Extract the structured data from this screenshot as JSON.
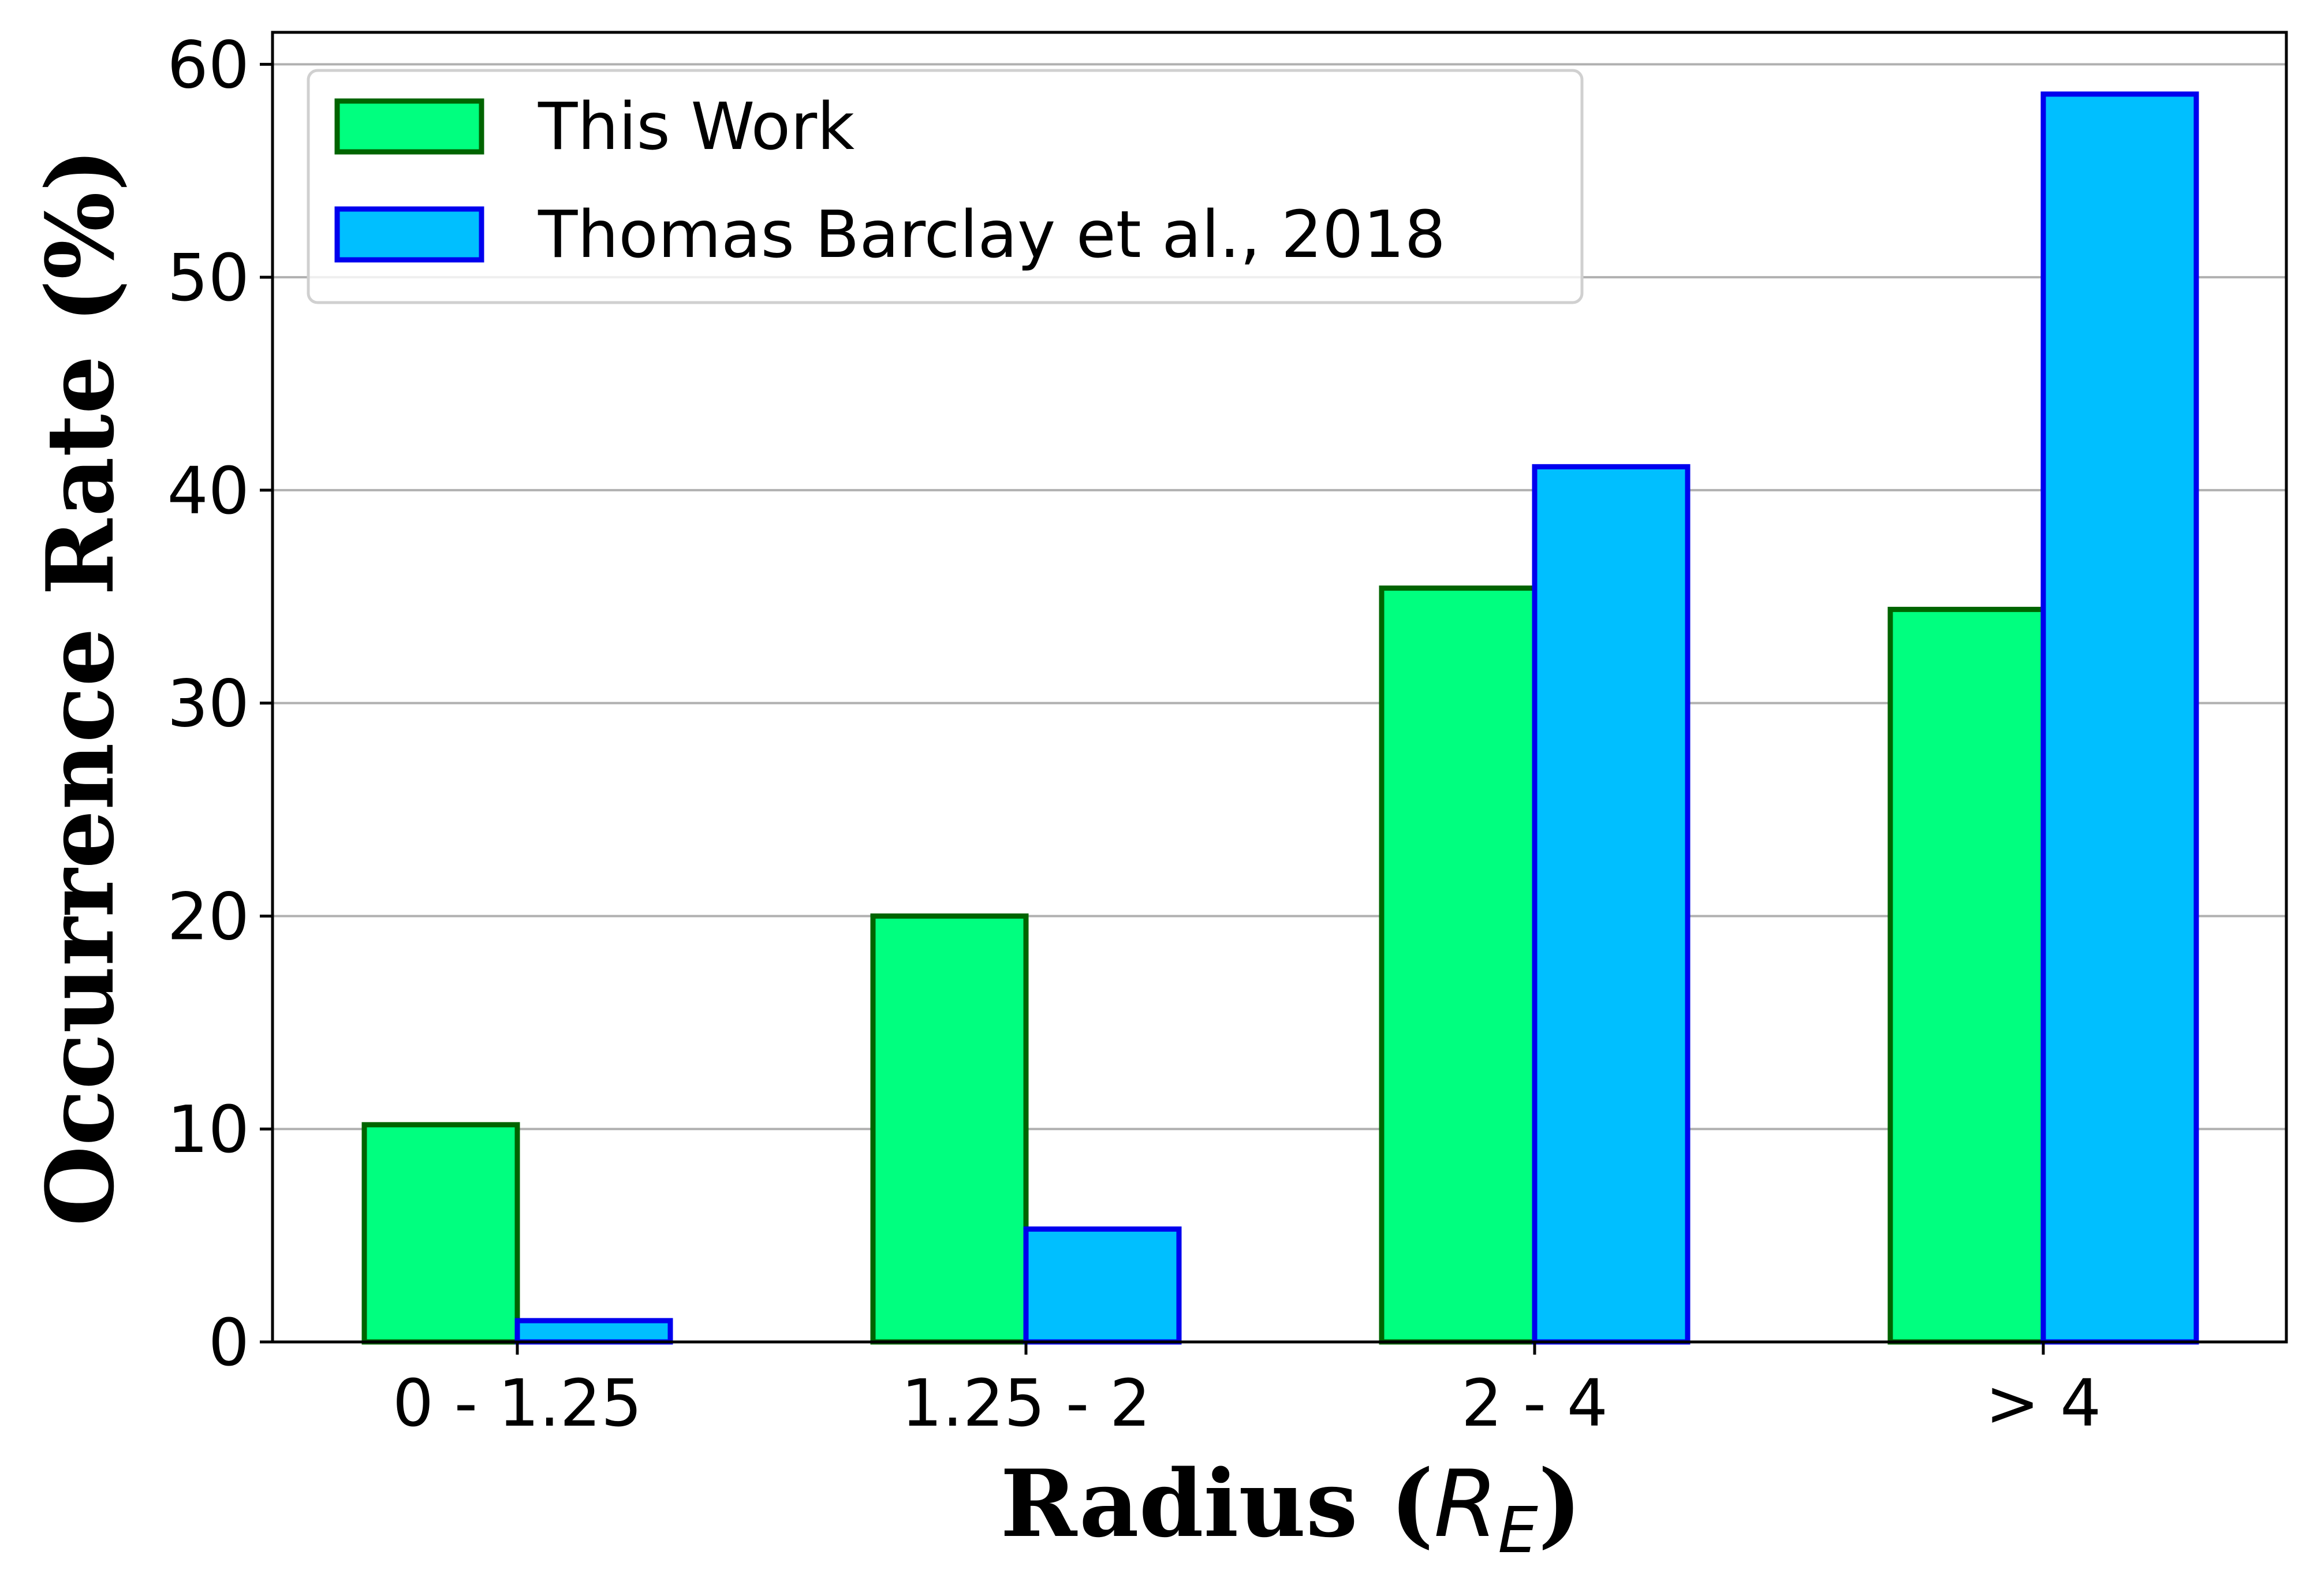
{
  "chart_data": {
    "type": "bar",
    "categories": [
      "0 - 1.25",
      "1.25 - 2",
      "2 - 4",
      "> 4"
    ],
    "series": [
      {
        "name": "This Work",
        "values": [
          10.2,
          20.0,
          35.4,
          34.4
        ],
        "fill": "#00ff7f",
        "stroke": "#006400"
      },
      {
        "name": "Thomas Barclay et al., 2018",
        "values": [
          1.0,
          5.3,
          41.1,
          58.6
        ],
        "fill": "#00bfff",
        "stroke": "#0000ee"
      }
    ],
    "title": "",
    "xlabel": {
      "prefix": "Radius (",
      "symbol": "R",
      "subscript": "E",
      "suffix": ")"
    },
    "ylabel": "Occurrence Rate (%)",
    "ylim": [
      0,
      61.5
    ],
    "yticks": [
      "0",
      "10",
      "20",
      "30",
      "40",
      "50",
      "60"
    ],
    "grid": "y",
    "legend_position": "top-left",
    "grid_color": "#b0b0b0"
  }
}
